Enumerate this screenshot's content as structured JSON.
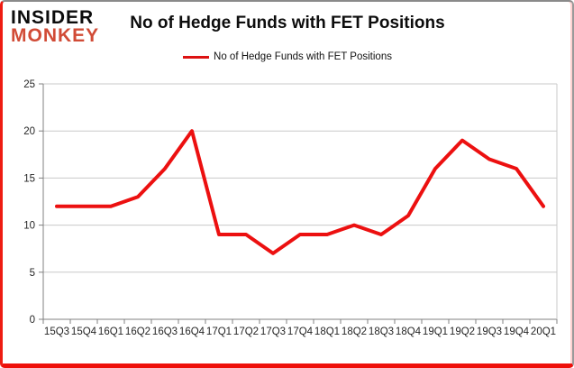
{
  "logo": {
    "line1": "INSIDER",
    "line2": "MONKEY"
  },
  "title": "No of Hedge Funds with FET Positions",
  "legend": {
    "label": "No of Hedge Funds with FET Positions"
  },
  "colors": {
    "series_line": "#ec1010",
    "legend_swatch": "#dd1212",
    "logo_accent": "#d14b36",
    "gridline": "#c9c9c9",
    "axis": "#808080"
  },
  "chart_data": {
    "type": "line",
    "title": "No of Hedge Funds with FET Positions",
    "series": [
      {
        "name": "No of Hedge Funds with FET Positions",
        "values": [
          12,
          12,
          12,
          13,
          16,
          20,
          9,
          9,
          7,
          9,
          9,
          10,
          9,
          11,
          16,
          19,
          17,
          16,
          12
        ]
      }
    ],
    "categories": [
      "15Q3",
      "15Q4",
      "16Q1",
      "16Q2",
      "16Q3",
      "16Q4",
      "17Q1",
      "17Q2",
      "17Q3",
      "17Q4",
      "18Q1",
      "18Q2",
      "18Q3",
      "18Q4",
      "19Q1",
      "19Q2",
      "19Q3",
      "19Q4",
      "20Q1"
    ],
    "xlabel": "",
    "ylabel": "",
    "ylim": [
      0,
      25
    ],
    "yticks": [
      0,
      5,
      10,
      15,
      20,
      25
    ],
    "grid": "horizontal",
    "legend_position": "top-center"
  }
}
